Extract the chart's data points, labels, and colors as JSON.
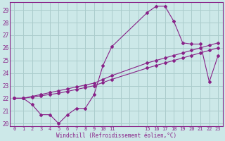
{
  "background_color": "#cce8e8",
  "grid_color": "#aacccc",
  "line_color": "#882288",
  "xlabel": "Windchill (Refroidissement éolien,°C)",
  "xlim": [
    -0.5,
    23.5
  ],
  "ylim": [
    19.8,
    29.6
  ],
  "yticks": [
    20,
    21,
    22,
    23,
    24,
    25,
    26,
    27,
    28,
    29
  ],
  "xticks": [
    0,
    1,
    2,
    3,
    4,
    5,
    6,
    7,
    8,
    9,
    10,
    11,
    15,
    16,
    17,
    18,
    19,
    20,
    21,
    22,
    23
  ],
  "series": [
    {
      "x": [
        0,
        1,
        2,
        3,
        4,
        5,
        6,
        7,
        8,
        9,
        10,
        11,
        15,
        16,
        17,
        18,
        19,
        20,
        21,
        22,
        23
      ],
      "y": [
        22.0,
        22.0,
        21.5,
        20.7,
        20.7,
        20.0,
        20.7,
        21.2,
        21.2,
        22.3,
        24.6,
        26.1,
        28.8,
        29.3,
        29.3,
        28.1,
        26.4,
        26.3,
        26.3,
        23.3,
        25.4
      ]
    },
    {
      "x": [
        0,
        1,
        2,
        3,
        4,
        5,
        6,
        7,
        8,
        9,
        10,
        11,
        15,
        16,
        17,
        18,
        19,
        20,
        21,
        22,
        23
      ],
      "y": [
        22.0,
        22.0,
        22.15,
        22.3,
        22.45,
        22.6,
        22.75,
        22.9,
        23.05,
        23.2,
        23.5,
        23.8,
        24.8,
        25.0,
        25.2,
        25.4,
        25.6,
        25.8,
        26.0,
        26.2,
        26.4
      ]
    },
    {
      "x": [
        0,
        1,
        2,
        3,
        4,
        5,
        6,
        7,
        8,
        9,
        10,
        11,
        15,
        16,
        17,
        18,
        19,
        20,
        21,
        22,
        23
      ],
      "y": [
        22.0,
        22.0,
        22.1,
        22.2,
        22.3,
        22.4,
        22.55,
        22.7,
        22.85,
        23.0,
        23.25,
        23.5,
        24.4,
        24.6,
        24.8,
        25.0,
        25.2,
        25.4,
        25.6,
        25.8,
        26.0
      ]
    }
  ]
}
